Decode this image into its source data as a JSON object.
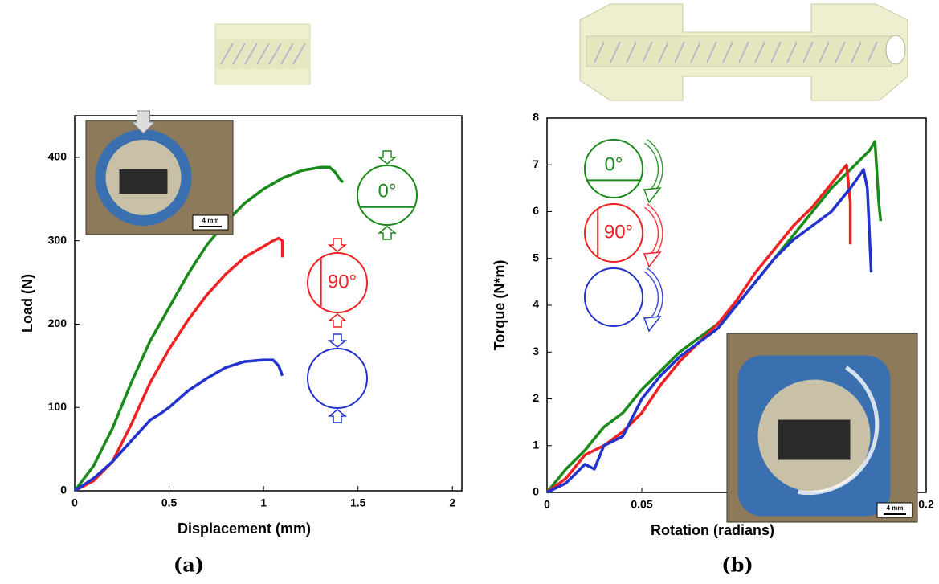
{
  "chart_data": [
    {
      "type": "line",
      "title": "(a)",
      "xlabel": "Displacement (mm)",
      "ylabel": "Load (N)",
      "xlim": [
        0,
        2.05
      ],
      "ylim": [
        0,
        450
      ],
      "xticks": [
        0,
        0.5,
        1,
        1.5,
        2
      ],
      "yticks": [
        0,
        100,
        200,
        300,
        400
      ],
      "inset_label": "4 mm",
      "series": [
        {
          "name": "0°",
          "color": "#1a8a1a",
          "x": [
            0,
            0.1,
            0.2,
            0.3,
            0.4,
            0.5,
            0.6,
            0.7,
            0.8,
            0.9,
            1.0,
            1.1,
            1.2,
            1.3,
            1.35,
            1.38,
            1.4,
            1.42
          ],
          "values": [
            0,
            30,
            75,
            130,
            180,
            220,
            260,
            295,
            322,
            345,
            362,
            375,
            384,
            388,
            388,
            382,
            375,
            370
          ]
        },
        {
          "name": "90°",
          "color": "#ee2222",
          "x": [
            0,
            0.1,
            0.2,
            0.3,
            0.4,
            0.5,
            0.6,
            0.7,
            0.8,
            0.9,
            1.0,
            1.05,
            1.08,
            1.1,
            1.1
          ],
          "values": [
            0,
            12,
            35,
            80,
            130,
            170,
            205,
            235,
            260,
            280,
            293,
            300,
            303,
            300,
            280
          ]
        },
        {
          "color": "#2233cc",
          "x": [
            0,
            0.1,
            0.2,
            0.3,
            0.4,
            0.45,
            0.5,
            0.6,
            0.7,
            0.8,
            0.9,
            1.0,
            1.05,
            1.08,
            1.1
          ],
          "values": [
            0,
            15,
            35,
            60,
            85,
            92,
            100,
            120,
            135,
            148,
            155,
            157,
            157,
            150,
            138
          ]
        }
      ]
    },
    {
      "type": "line",
      "title": "(b)",
      "xlabel": "Rotation (radians)",
      "ylabel": "Torque (N*m)",
      "xlim": [
        0,
        0.2
      ],
      "ylim": [
        0,
        8
      ],
      "xticks": [
        0,
        0.05,
        0.1,
        0.15,
        0.2
      ],
      "yticks": [
        0,
        1,
        2,
        3,
        4,
        5,
        6,
        7,
        8
      ],
      "inset_label": "4 mm",
      "series": [
        {
          "name": "0°",
          "color": "#1a8a1a",
          "x": [
            0,
            0.01,
            0.02,
            0.03,
            0.04,
            0.05,
            0.06,
            0.07,
            0.08,
            0.09,
            0.1,
            0.11,
            0.12,
            0.13,
            0.14,
            0.15,
            0.16,
            0.17,
            0.173,
            0.175,
            0.176
          ],
          "values": [
            0,
            0.5,
            0.9,
            1.4,
            1.7,
            2.2,
            2.6,
            3.0,
            3.3,
            3.6,
            4.0,
            4.5,
            5.0,
            5.5,
            6.0,
            6.5,
            6.9,
            7.3,
            7.5,
            6.2,
            5.8
          ]
        },
        {
          "name": "90°",
          "color": "#ee2222",
          "x": [
            0,
            0.01,
            0.02,
            0.025,
            0.03,
            0.04,
            0.05,
            0.06,
            0.07,
            0.08,
            0.09,
            0.1,
            0.11,
            0.12,
            0.13,
            0.14,
            0.15,
            0.158,
            0.16,
            0.16
          ],
          "values": [
            0,
            0.3,
            0.8,
            0.9,
            1.0,
            1.3,
            1.7,
            2.3,
            2.8,
            3.2,
            3.6,
            4.1,
            4.7,
            5.2,
            5.7,
            6.1,
            6.6,
            7.0,
            6.2,
            5.3
          ]
        },
        {
          "color": "#2233cc",
          "x": [
            0,
            0.01,
            0.02,
            0.025,
            0.03,
            0.04,
            0.05,
            0.06,
            0.07,
            0.08,
            0.09,
            0.1,
            0.11,
            0.12,
            0.13,
            0.14,
            0.15,
            0.16,
            0.167,
            0.169,
            0.171
          ],
          "values": [
            0,
            0.2,
            0.6,
            0.5,
            1.0,
            1.2,
            2.0,
            2.5,
            2.9,
            3.2,
            3.5,
            4.0,
            4.5,
            5.0,
            5.4,
            5.7,
            6.0,
            6.5,
            6.9,
            6.5,
            4.7
          ]
        }
      ]
    }
  ]
}
